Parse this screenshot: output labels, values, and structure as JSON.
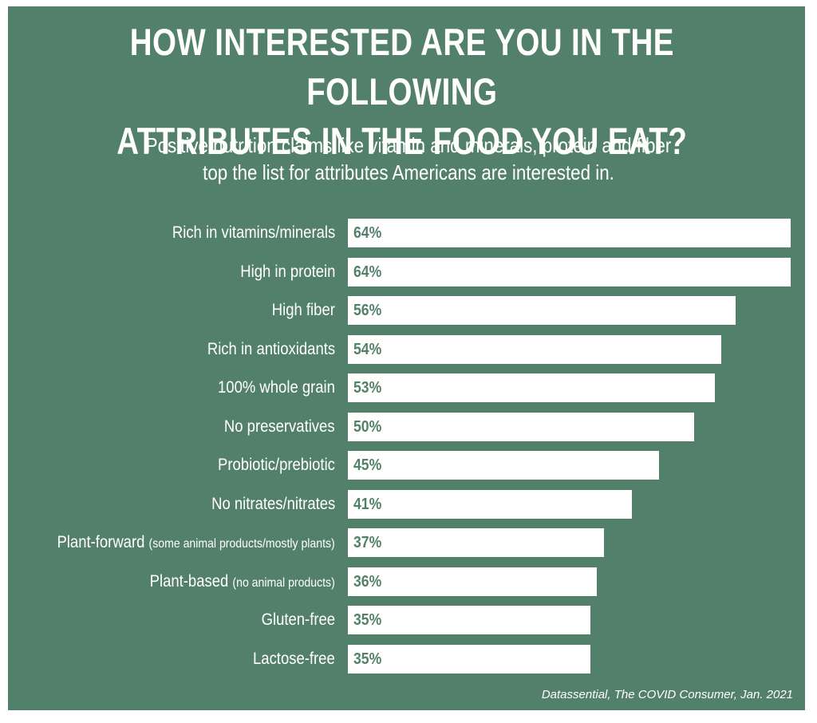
{
  "colors": {
    "background": "#53806b",
    "bar": "#ffffff",
    "text": "#ffffff",
    "value_text": "#53806b"
  },
  "chart_data": {
    "type": "bar",
    "orientation": "horizontal",
    "title_lines": [
      "HOW INTERESTED ARE YOU IN THE FOLLOWING",
      "ATTRIBUTES IN THE FOOD YOU EAT?"
    ],
    "subtitle_lines": [
      "Positive nutrition claims like vitamin and minerals, protein and fiber",
      "top the list for attributes  Americans are interested in."
    ],
    "value_suffix": "%",
    "xlim": [
      0,
      64
    ],
    "categories": [
      {
        "label": "Rich in vitamins/minerals",
        "note": "",
        "value": 64
      },
      {
        "label": "High in protein",
        "note": "",
        "value": 64
      },
      {
        "label": "High fiber",
        "note": "",
        "value": 56
      },
      {
        "label": "Rich in antioxidants",
        "note": "",
        "value": 54
      },
      {
        "label": "100% whole grain",
        "note": "",
        "value": 53
      },
      {
        "label": "No preservatives",
        "note": "",
        "value": 50
      },
      {
        "label": "Probiotic/prebiotic",
        "note": "",
        "value": 45
      },
      {
        "label": "No nitrates/nitrates",
        "note": "",
        "value": 41
      },
      {
        "label": "Plant-forward",
        "note": "(some animal products/mostly plants)",
        "value": 37
      },
      {
        "label": "Plant-based",
        "note": "(no animal products)",
        "value": 36
      },
      {
        "label": "Gluten-free",
        "note": "",
        "value": 35
      },
      {
        "label": "Lactose-free",
        "note": "",
        "value": 35
      }
    ],
    "source": "Datassential, The COVID Consumer, Jan. 2021"
  }
}
